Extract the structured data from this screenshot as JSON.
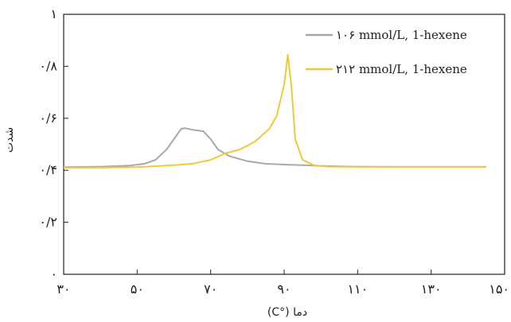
{
  "chart_data": {
    "type": "line",
    "xlabel": "دما (°C)",
    "ylabel": "شدت",
    "xlim": [
      30,
      150
    ],
    "ylim": [
      0,
      1
    ],
    "x_ticks": [
      30,
      50,
      70,
      90,
      110,
      130,
      150
    ],
    "x_tick_labels": [
      "۳۰",
      "۵۰",
      "۷۰",
      "۹۰",
      "۱۱۰",
      "۱۳۰",
      "۱۵۰"
    ],
    "y_ticks": [
      0,
      0.2,
      0.4,
      0.6,
      0.8,
      1
    ],
    "y_tick_labels": [
      "۰",
      "۰/۲",
      "۰/۴",
      "۰/۶",
      "۰/۸",
      "۱"
    ],
    "grid": false,
    "legend_position": "top-right",
    "colors": {
      "series_1": "#a9a9ab",
      "series_2": "#f0c83c",
      "axis": "#222222"
    },
    "series": [
      {
        "name": "۱۰۶ mmol/L, 1-hexene",
        "x": [
          30,
          40,
          48,
          52,
          55,
          58,
          60,
          62,
          63,
          65,
          68,
          70,
          72,
          75,
          80,
          85,
          90,
          95,
          100,
          105,
          110,
          120,
          130,
          140,
          145
        ],
        "y": [
          0.412,
          0.414,
          0.418,
          0.425,
          0.44,
          0.48,
          0.52,
          0.56,
          0.562,
          0.556,
          0.55,
          0.52,
          0.48,
          0.455,
          0.435,
          0.425,
          0.422,
          0.42,
          0.417,
          0.415,
          0.414,
          0.413,
          0.413,
          0.413,
          0.413
        ]
      },
      {
        "name": "۲۱۲ mmol/L, 1-hexene",
        "x": [
          30,
          40,
          50,
          60,
          65,
          70,
          74,
          78,
          82,
          86,
          88,
          90,
          91,
          92,
          93,
          95,
          98,
          102,
          110,
          120,
          130,
          140,
          145
        ],
        "y": [
          0.41,
          0.41,
          0.412,
          0.42,
          0.425,
          0.44,
          0.465,
          0.48,
          0.51,
          0.56,
          0.61,
          0.73,
          0.845,
          0.72,
          0.52,
          0.44,
          0.42,
          0.414,
          0.413,
          0.413,
          0.413,
          0.413,
          0.413
        ]
      }
    ]
  }
}
